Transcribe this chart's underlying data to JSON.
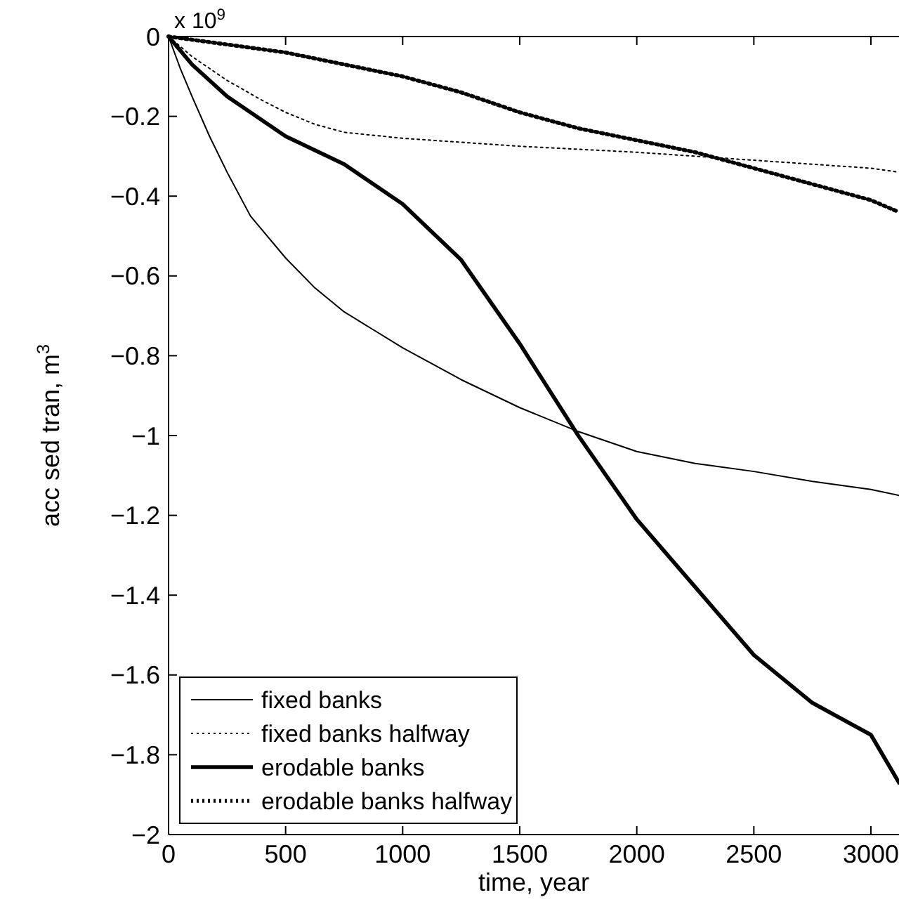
{
  "chart_data": {
    "type": "line",
    "xlabel": "time, year",
    "ylabel": "acc sed tran, m$^{3}$",
    "annotations": [
      "x 10$^{9}$"
    ],
    "xlim": [
      0,
      3120
    ],
    "xticks": [
      0,
      500,
      1000,
      1500,
      2000,
      2500,
      3000
    ],
    "ylim": [
      -2,
      0
    ],
    "yticks": [
      -2,
      -1.8,
      -1.6,
      -1.4,
      -1.2,
      -1,
      -0.8,
      -0.6,
      -0.4,
      -0.2,
      0
    ],
    "grid": false,
    "legend": "bottom left",
    "series": [
      {
        "name": "fixed banks",
        "color": "#000000",
        "line_style": "solid",
        "x": [
          0,
          50,
          100,
          175,
          250,
          350,
          500,
          625,
          750,
          875,
          1000,
          1250,
          1500,
          1750,
          2000,
          2250,
          2500,
          2750,
          3000,
          3120
        ],
        "values": [
          0,
          -0.08,
          -0.15,
          -0.25,
          -0.34,
          -0.45,
          -0.555,
          -0.63,
          -0.69,
          -0.735,
          -0.78,
          -0.86,
          -0.93,
          -0.99,
          -1.04,
          -1.07,
          -1.09,
          -1.115,
          -1.135,
          -1.15
        ]
      },
      {
        "name": "fixed banks halfway",
        "color": "#000000",
        "line_style": "dotted",
        "x": [
          0,
          100,
          250,
          400,
          500,
          625,
          750,
          1000,
          1250,
          1500,
          2000,
          2500,
          3000,
          3120
        ],
        "values": [
          0,
          -0.05,
          -0.11,
          -0.16,
          -0.19,
          -0.22,
          -0.24,
          -0.255,
          -0.265,
          -0.275,
          -0.29,
          -0.31,
          -0.33,
          -0.34
        ]
      },
      {
        "name": "erodable banks",
        "color": "#000000",
        "line_style": "solid",
        "x": [
          0,
          100,
          250,
          500,
          750,
          1000,
          1250,
          1500,
          1750,
          2000,
          2250,
          2500,
          2750,
          3000,
          3120
        ],
        "values": [
          0,
          -0.07,
          -0.15,
          -0.25,
          -0.32,
          -0.42,
          -0.56,
          -0.77,
          -1.0,
          -1.21,
          -1.38,
          -1.55,
          -1.67,
          -1.75,
          -1.87
        ]
      },
      {
        "name": "erodable banks halfway",
        "color": "#000000",
        "line_style": "dotted",
        "x": [
          0,
          250,
          500,
          750,
          1000,
          1250,
          1500,
          1750,
          2000,
          2250,
          2500,
          2750,
          3000,
          3120
        ],
        "values": [
          0,
          -0.02,
          -0.04,
          -0.07,
          -0.1,
          -0.14,
          -0.19,
          -0.23,
          -0.26,
          -0.29,
          -0.33,
          -0.37,
          -0.41,
          -0.44
        ]
      }
    ]
  }
}
